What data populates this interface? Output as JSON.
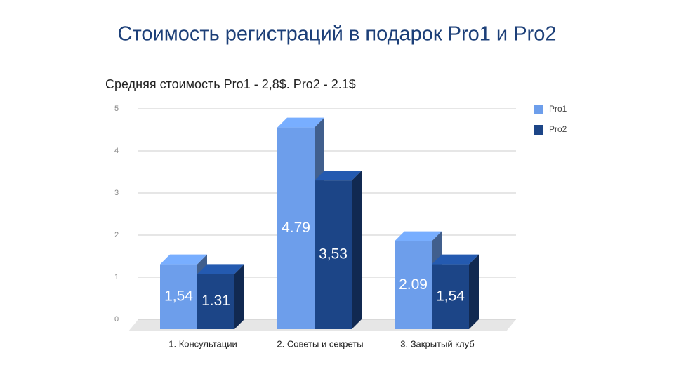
{
  "slide": {
    "title": "Стоимость регистраций в подарок Pro1 и Pro2"
  },
  "chart_data": {
    "type": "bar3d",
    "title": "Средняя стоимость Pro1 - 2,8$. Pro2 - 2.1$",
    "categories": [
      "1. Консультации",
      "2. Советы и секреты",
      "3. Закрытый клуб"
    ],
    "series": [
      {
        "name": "Pro1",
        "color": "#6d9eeb",
        "values": [
          1.54,
          4.79,
          2.09
        ],
        "value_labels": [
          "1,54",
          "4.79",
          "2.09"
        ]
      },
      {
        "name": "Pro2",
        "color": "#1c4587",
        "values": [
          1.31,
          3.53,
          1.54
        ],
        "value_labels": [
          "1.31",
          "3,53",
          "1,54"
        ]
      }
    ],
    "ylim": [
      0,
      5
    ],
    "yticks": [
      0,
      1,
      2,
      3,
      4,
      5
    ],
    "grid": true,
    "legend": "right"
  }
}
